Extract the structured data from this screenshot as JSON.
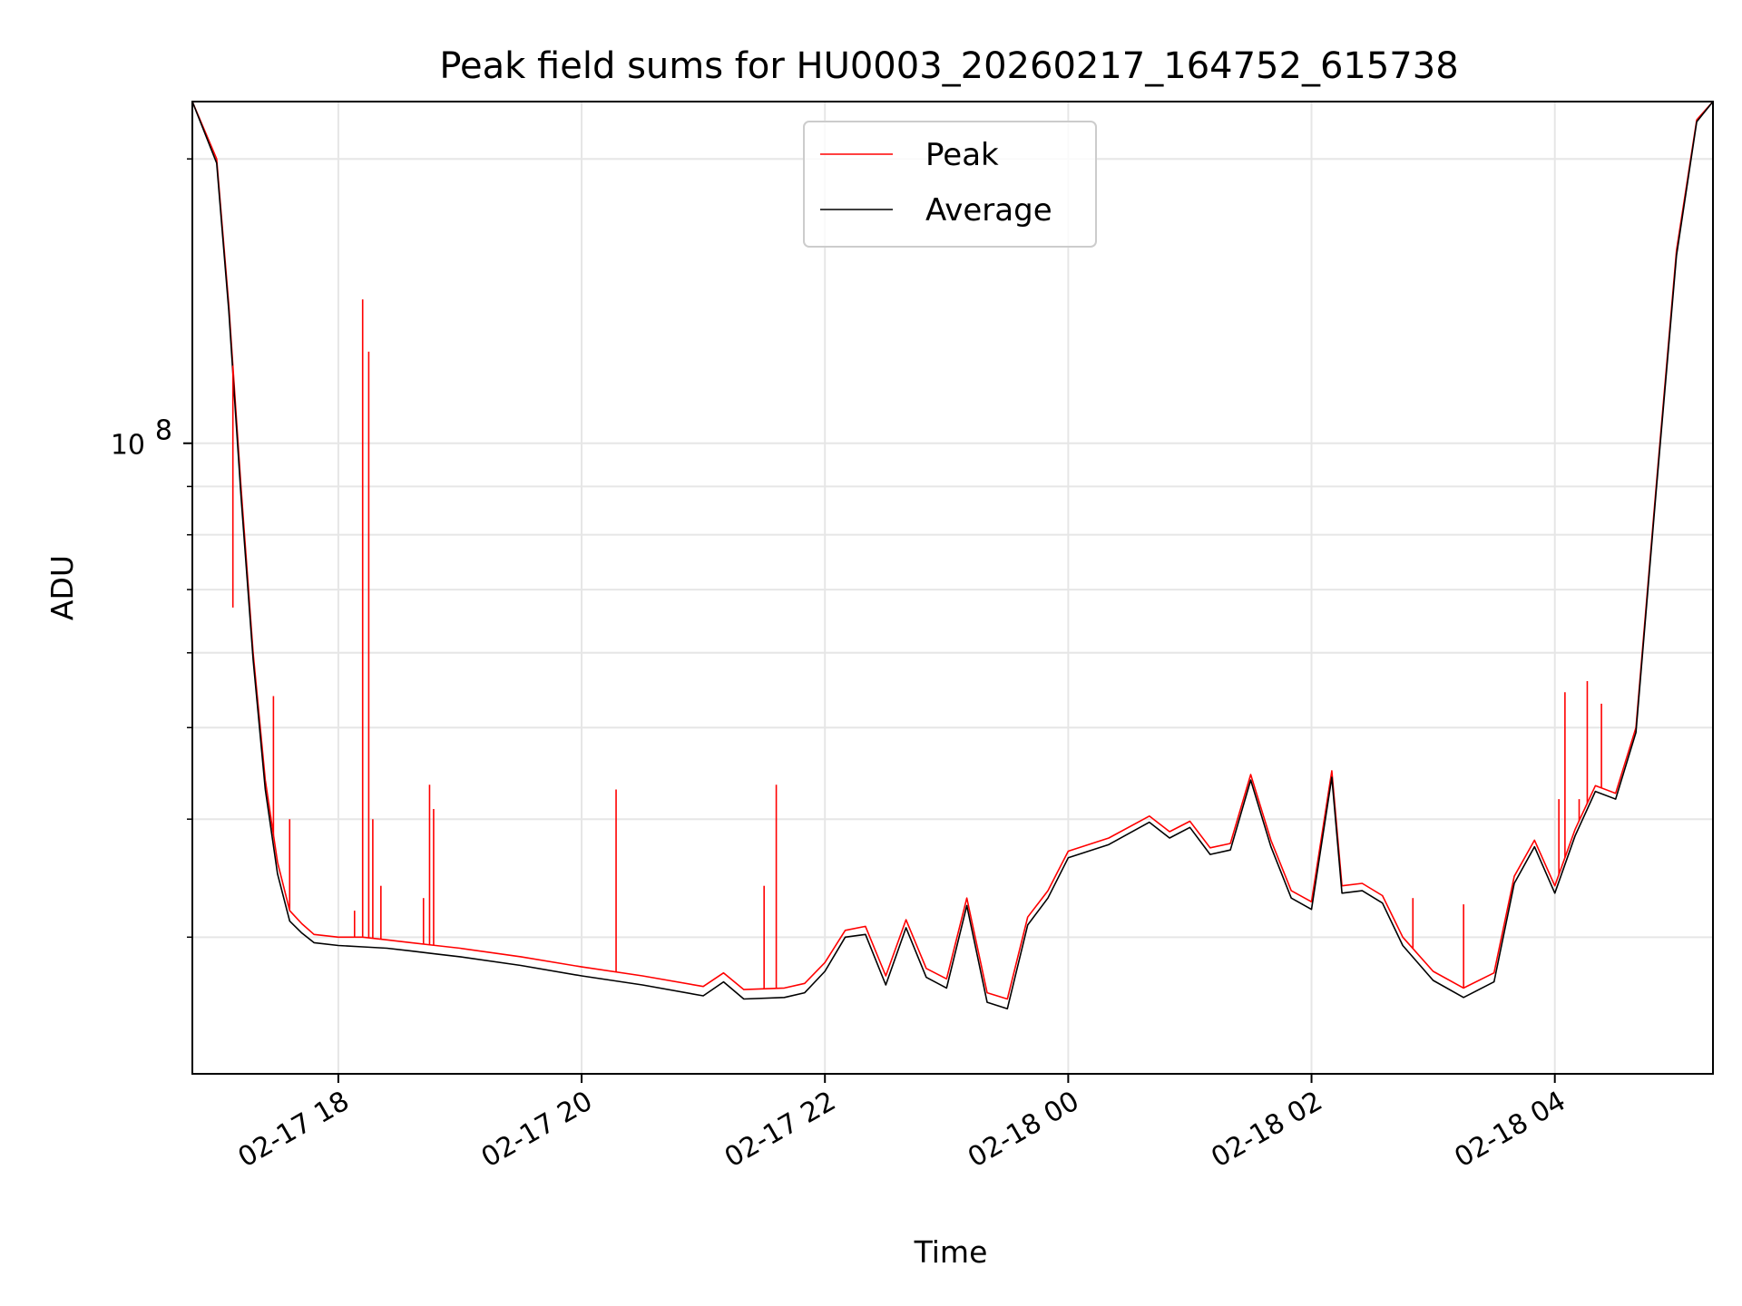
{
  "chart_data": {
    "type": "line",
    "title": "Peak field sums for HU0003_20260217_164752_615738",
    "xlabel": "Time",
    "ylabel": "ADU",
    "x_tick_labels": [
      "02-17 18",
      "02-17 20",
      "02-17 22",
      "02-18 00",
      "02-18 02",
      "02-18 04"
    ],
    "y_tick_major": [
      {
        "base": "10",
        "exp": "8"
      }
    ],
    "yscale": "log",
    "xlim": [
      "2026-02-17 16:48",
      "2026-02-18 05:18"
    ],
    "ylim": [
      21500000,
      230000000
    ],
    "grid": true,
    "legend_position": "upper center",
    "colors": {
      "peak": "#ff0000",
      "average": "#000000"
    },
    "series": [
      {
        "name": "Peak",
        "x": [
          "2026-02-17 16:48",
          "2026-02-17 17:00",
          "2026-02-17 17:06",
          "2026-02-17 17:12",
          "2026-02-17 17:18",
          "2026-02-17 17:24",
          "2026-02-17 17:30",
          "2026-02-17 17:36",
          "2026-02-17 17:42",
          "2026-02-17 17:48",
          "2026-02-17 18:00",
          "2026-02-17 18:12",
          "2026-02-17 18:24",
          "2026-02-17 18:36",
          "2026-02-17 18:48",
          "2026-02-17 19:00",
          "2026-02-17 19:30",
          "2026-02-17 20:00",
          "2026-02-17 20:30",
          "2026-02-17 21:00",
          "2026-02-17 21:10",
          "2026-02-17 21:20",
          "2026-02-17 21:40",
          "2026-02-17 21:50",
          "2026-02-17 22:00",
          "2026-02-17 22:10",
          "2026-02-17 22:20",
          "2026-02-17 22:30",
          "2026-02-17 22:40",
          "2026-02-17 22:50",
          "2026-02-17 23:00",
          "2026-02-17 23:10",
          "2026-02-17 23:20",
          "2026-02-17 23:30",
          "2026-02-17 23:40",
          "2026-02-17 23:50",
          "2026-02-18 00:00",
          "2026-02-18 00:20",
          "2026-02-18 00:40",
          "2026-02-18 00:50",
          "2026-02-18 01:00",
          "2026-02-18 01:10",
          "2026-02-18 01:20",
          "2026-02-18 01:30",
          "2026-02-18 01:40",
          "2026-02-18 01:50",
          "2026-02-18 02:00",
          "2026-02-18 02:10",
          "2026-02-18 02:15",
          "2026-02-18 02:25",
          "2026-02-18 02:35",
          "2026-02-18 02:45",
          "2026-02-18 03:00",
          "2026-02-18 03:15",
          "2026-02-18 03:30",
          "2026-02-18 03:40",
          "2026-02-18 03:50",
          "2026-02-18 04:00",
          "2026-02-18 04:10",
          "2026-02-18 04:20",
          "2026-02-18 04:30",
          "2026-02-18 04:40",
          "2026-02-18 04:50",
          "2026-02-18 05:00",
          "2026-02-18 05:10",
          "2026-02-18 05:18"
        ],
        "y": [
          230000000,
          200000000,
          140000000,
          90000000,
          60000000,
          44000000,
          36000000,
          32000000,
          31000000,
          30200000,
          30000000,
          30000000,
          29800000,
          29600000,
          29400000,
          29200000,
          28600000,
          27900000,
          27300000,
          26600000,
          27500000,
          26400000,
          26500000,
          26800000,
          28200000,
          30500000,
          30800000,
          27300000,
          31300000,
          27800000,
          27100000,
          33000000,
          26200000,
          25800000,
          31500000,
          33600000,
          37000000,
          38200000,
          40300000,
          38800000,
          39800000,
          37300000,
          37700000,
          44600000,
          38000000,
          33600000,
          32700000,
          45000000,
          34000000,
          34200000,
          33200000,
          30000000,
          27600000,
          26500000,
          27500000,
          34800000,
          38000000,
          34000000,
          39000000,
          43400000,
          42600000,
          50000000,
          90000000,
          160000000,
          220000000,
          230000000
        ],
        "spikes": [
          {
            "x": "2026-02-17 18:12",
            "y": 142000000
          },
          {
            "x": "2026-02-17 18:15",
            "y": 125000000
          },
          {
            "x": "2026-02-17 17:08",
            "y": 67000000
          },
          {
            "x": "2026-02-17 17:28",
            "y": 54000000
          },
          {
            "x": "2026-02-17 17:36",
            "y": 40000000
          },
          {
            "x": "2026-02-17 18:45",
            "y": 43500000
          },
          {
            "x": "2026-02-17 18:47",
            "y": 41000000
          },
          {
            "x": "2026-02-17 18:17",
            "y": 40000000
          },
          {
            "x": "2026-02-17 18:21",
            "y": 34000000
          },
          {
            "x": "2026-02-17 18:42",
            "y": 33000000
          },
          {
            "x": "2026-02-17 18:08",
            "y": 32000000
          },
          {
            "x": "2026-02-17 20:17",
            "y": 43000000
          },
          {
            "x": "2026-02-17 21:30",
            "y": 34000000
          },
          {
            "x": "2026-02-17 21:36",
            "y": 43500000
          },
          {
            "x": "2026-02-18 02:50",
            "y": 33000000
          },
          {
            "x": "2026-02-18 03:15",
            "y": 32500000
          },
          {
            "x": "2026-02-18 04:02",
            "y": 42000000
          },
          {
            "x": "2026-02-18 04:05",
            "y": 54500000
          },
          {
            "x": "2026-02-18 04:12",
            "y": 42000000
          },
          {
            "x": "2026-02-18 04:16",
            "y": 56000000
          },
          {
            "x": "2026-02-18 04:23",
            "y": 53000000
          }
        ]
      },
      {
        "name": "Average",
        "x": [
          "2026-02-17 16:48",
          "2026-02-17 17:00",
          "2026-02-17 17:06",
          "2026-02-17 17:12",
          "2026-02-17 17:18",
          "2026-02-17 17:24",
          "2026-02-17 17:30",
          "2026-02-17 17:36",
          "2026-02-17 17:42",
          "2026-02-17 17:48",
          "2026-02-17 18:00",
          "2026-02-17 18:12",
          "2026-02-17 18:24",
          "2026-02-17 18:36",
          "2026-02-17 18:48",
          "2026-02-17 19:00",
          "2026-02-17 19:30",
          "2026-02-17 20:00",
          "2026-02-17 20:30",
          "2026-02-17 21:00",
          "2026-02-17 21:10",
          "2026-02-17 21:20",
          "2026-02-17 21:40",
          "2026-02-17 21:50",
          "2026-02-17 22:00",
          "2026-02-17 22:10",
          "2026-02-17 22:20",
          "2026-02-17 22:30",
          "2026-02-17 22:40",
          "2026-02-17 22:50",
          "2026-02-17 23:00",
          "2026-02-17 23:10",
          "2026-02-17 23:20",
          "2026-02-17 23:30",
          "2026-02-17 23:40",
          "2026-02-17 23:50",
          "2026-02-18 00:00",
          "2026-02-18 00:20",
          "2026-02-18 00:40",
          "2026-02-18 00:50",
          "2026-02-18 01:00",
          "2026-02-18 01:10",
          "2026-02-18 01:20",
          "2026-02-18 01:30",
          "2026-02-18 01:40",
          "2026-02-18 01:50",
          "2026-02-18 02:00",
          "2026-02-18 02:10",
          "2026-02-18 02:15",
          "2026-02-18 02:25",
          "2026-02-18 02:35",
          "2026-02-18 02:45",
          "2026-02-18 03:00",
          "2026-02-18 03:15",
          "2026-02-18 03:30",
          "2026-02-18 03:40",
          "2026-02-18 03:50",
          "2026-02-18 04:00",
          "2026-02-18 04:10",
          "2026-02-18 04:20",
          "2026-02-18 04:30",
          "2026-02-18 04:40",
          "2026-02-18 04:50",
          "2026-02-18 05:00",
          "2026-02-18 05:10",
          "2026-02-18 05:18"
        ],
        "y": [
          230000000,
          198000000,
          138000000,
          88000000,
          59000000,
          43000000,
          35000000,
          31200000,
          30300000,
          29600000,
          29400000,
          29300000,
          29200000,
          29000000,
          28800000,
          28600000,
          28000000,
          27300000,
          26700000,
          26000000,
          26900000,
          25800000,
          25900000,
          26200000,
          27600000,
          30000000,
          30200000,
          26700000,
          30700000,
          27200000,
          26500000,
          32400000,
          25600000,
          25200000,
          30900000,
          33000000,
          36400000,
          37600000,
          39700000,
          38200000,
          39200000,
          36700000,
          37100000,
          44000000,
          37400000,
          33000000,
          32100000,
          44300000,
          33400000,
          33600000,
          32600000,
          29400000,
          27000000,
          25900000,
          26900000,
          34200000,
          37400000,
          33400000,
          38400000,
          42800000,
          42000000,
          49400000,
          89000000,
          158000000,
          219000000,
          230000000
        ],
        "spikes": []
      }
    ]
  }
}
